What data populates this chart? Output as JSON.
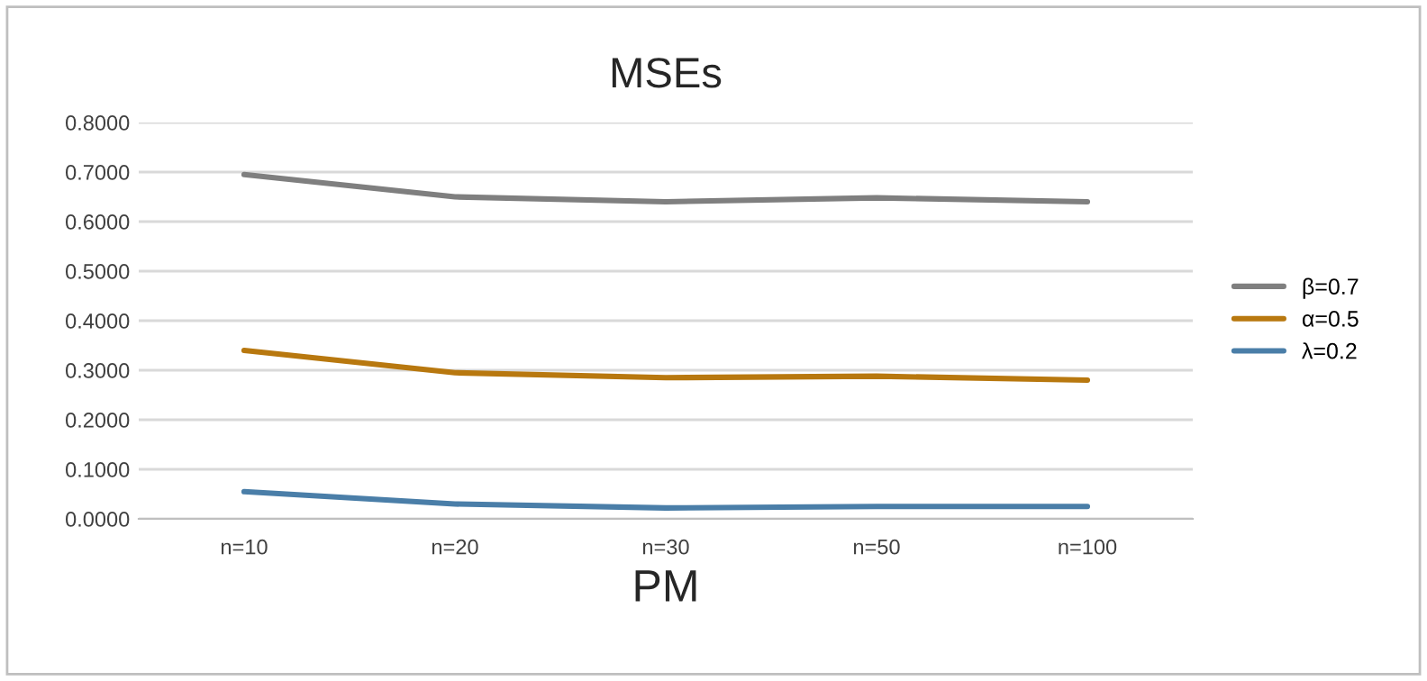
{
  "chart_data": {
    "type": "line",
    "title": "MSEs",
    "xlabel": "PM",
    "categories": [
      "n=10",
      "n=20",
      "n=30",
      "n=50",
      "n=100"
    ],
    "series": [
      {
        "name": "β=0.7",
        "color": "#7f7f7f",
        "values": [
          0.695,
          0.65,
          0.64,
          0.648,
          0.64
        ]
      },
      {
        "name": "α=0.5",
        "color": "#b8780f",
        "values": [
          0.34,
          0.295,
          0.285,
          0.288,
          0.28
        ]
      },
      {
        "name": "λ=0.2",
        "color": "#4a7ea8",
        "values": [
          0.055,
          0.03,
          0.022,
          0.025,
          0.025
        ]
      }
    ],
    "ylim": [
      0,
      0.8
    ],
    "yticks": [
      {
        "value": 0,
        "label": "0.0000"
      },
      {
        "value": 0.1,
        "label": "0.1000"
      },
      {
        "value": 0.2,
        "label": "0.2000"
      },
      {
        "value": 0.3,
        "label": "0.3000"
      },
      {
        "value": 0.4,
        "label": "0.4000"
      },
      {
        "value": 0.5,
        "label": "0.5000"
      },
      {
        "value": 0.6,
        "label": "0.6000"
      },
      {
        "value": 0.7,
        "label": "0.7000"
      },
      {
        "value": 0.8,
        "label": "0.8000"
      }
    ],
    "grid": "y",
    "legend": "right",
    "marker": "none",
    "line_style": "solid"
  }
}
